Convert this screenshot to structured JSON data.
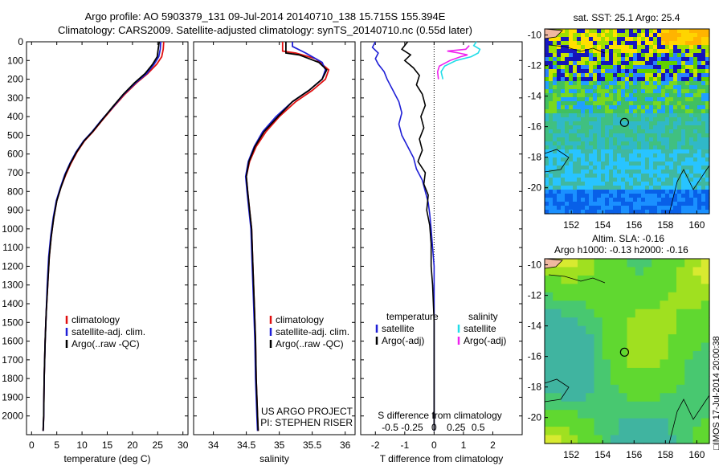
{
  "header": {
    "title_line1": "Argo profile: AO 5903379_131 09-Jul-2014 20140710_138 15.715S 155.394E",
    "title_line2": "Climatology: CARS2009. Satellite-adjusted climatology: synTS_20140710.nc (0.55d later)"
  },
  "sidebar": {
    "stamp": "IMOS 17-Jul-2014 20:00:38"
  },
  "colors": {
    "argo": "#000000",
    "satellite": "#1f1fd6",
    "climatology": "#e01010",
    "sal_satellite": "#22dde8",
    "sal_argo": "#ee22ee",
    "dotted": "#000000"
  },
  "chart_data": [
    {
      "type": "line",
      "id": "temperature",
      "xlabel": "temperature (deg C)",
      "ylabel": "",
      "xlim": [
        -1,
        31
      ],
      "ylim": [
        2100,
        0
      ],
      "xticks": [
        0,
        5,
        10,
        15,
        20,
        25,
        30
      ],
      "yticks": [
        0,
        100,
        200,
        300,
        400,
        500,
        600,
        700,
        800,
        900,
        1000,
        1100,
        1200,
        1300,
        1400,
        1500,
        1600,
        1700,
        1800,
        1900,
        2000
      ],
      "legend": [
        "climatology",
        "satellite-adj. clim.",
        "Argo(..raw -QC)"
      ],
      "legend_position": "lower-middle",
      "series": [
        {
          "name": "climatology",
          "color": "#e01010",
          "points": [
            [
              26.2,
              0
            ],
            [
              26.1,
              40
            ],
            [
              25.8,
              80
            ],
            [
              24.8,
              120
            ],
            [
              23.0,
              170
            ],
            [
              20.8,
              220
            ],
            [
              18.5,
              280
            ],
            [
              16.2,
              350
            ],
            [
              14.0,
              420
            ],
            [
              12.2,
              480
            ],
            [
              10.5,
              530
            ],
            [
              9.0,
              590
            ],
            [
              7.8,
              650
            ],
            [
              6.8,
              710
            ],
            [
              5.8,
              780
            ],
            [
              5.0,
              850
            ],
            [
              4.4,
              940
            ],
            [
              3.9,
              1040
            ],
            [
              3.5,
              1150
            ],
            [
              3.2,
              1300
            ],
            [
              2.9,
              1450
            ],
            [
              2.7,
              1600
            ],
            [
              2.5,
              1800
            ],
            [
              2.4,
              2000
            ],
            [
              2.3,
              2080
            ]
          ]
        },
        {
          "name": "satellite-adj. clim.",
          "color": "#1f1fd6",
          "points": [
            [
              25.6,
              0
            ],
            [
              25.5,
              40
            ],
            [
              25.2,
              80
            ],
            [
              24.3,
              120
            ],
            [
              22.8,
              170
            ],
            [
              20.6,
              220
            ],
            [
              18.3,
              280
            ],
            [
              16.1,
              350
            ],
            [
              13.8,
              420
            ],
            [
              12.0,
              480
            ],
            [
              10.3,
              530
            ],
            [
              8.8,
              590
            ],
            [
              7.6,
              650
            ],
            [
              6.6,
              710
            ],
            [
              5.7,
              780
            ],
            [
              4.9,
              850
            ],
            [
              4.3,
              940
            ],
            [
              3.8,
              1040
            ],
            [
              3.4,
              1150
            ],
            [
              3.1,
              1300
            ],
            [
              2.9,
              1450
            ],
            [
              2.7,
              1600
            ],
            [
              2.5,
              1800
            ],
            [
              2.4,
              2000
            ],
            [
              2.3,
              2080
            ]
          ]
        },
        {
          "name": "Argo(..raw -QC)",
          "color": "#000000",
          "points": [
            [
              25.3,
              0
            ],
            [
              25.1,
              40
            ],
            [
              24.9,
              80
            ],
            [
              24.0,
              120
            ],
            [
              22.5,
              170
            ],
            [
              20.4,
              220
            ],
            [
              18.2,
              280
            ],
            [
              16.0,
              350
            ],
            [
              13.9,
              420
            ],
            [
              12.1,
              480
            ],
            [
              10.4,
              530
            ],
            [
              8.9,
              590
            ],
            [
              7.7,
              650
            ],
            [
              6.7,
              710
            ],
            [
              5.8,
              780
            ],
            [
              5.0,
              850
            ],
            [
              4.4,
              940
            ],
            [
              3.9,
              1040
            ],
            [
              3.5,
              1150
            ],
            [
              3.2,
              1300
            ],
            [
              2.9,
              1450
            ],
            [
              2.7,
              1600
            ],
            [
              2.5,
              1800
            ],
            [
              2.4,
              2000
            ],
            [
              2.3,
              2080
            ]
          ]
        }
      ],
      "annotations": []
    },
    {
      "type": "line",
      "id": "salinity",
      "xlabel": "salinity",
      "ylabel": "",
      "xlim": [
        33.7,
        36.15
      ],
      "ylim": [
        2100,
        0
      ],
      "xticks": [
        34,
        34.5,
        35,
        35.5,
        36
      ],
      "legend": [
        "climatology",
        "satellite-adj. clim.",
        "Argo(..raw -QC)"
      ],
      "legend_position": "lower-right",
      "series": [
        {
          "name": "climatology",
          "color": "#e01010",
          "points": [
            [
              35.05,
              0
            ],
            [
              35.05,
              50
            ],
            [
              35.25,
              60
            ],
            [
              35.55,
              90
            ],
            [
              35.75,
              150
            ],
            [
              35.7,
              200
            ],
            [
              35.5,
              260
            ],
            [
              35.25,
              320
            ],
            [
              35.0,
              400
            ],
            [
              34.8,
              480
            ],
            [
              34.65,
              560
            ],
            [
              34.55,
              640
            ],
            [
              34.5,
              720
            ],
            [
              34.52,
              800
            ],
            [
              34.55,
              900
            ],
            [
              34.58,
              1000
            ],
            [
              34.6,
              1200
            ],
            [
              34.62,
              1400
            ],
            [
              34.64,
              1600
            ],
            [
              34.65,
              1800
            ],
            [
              34.67,
              2000
            ],
            [
              34.68,
              2080
            ]
          ]
        },
        {
          "name": "satellite-adj. clim.",
          "color": "#1f1fd6",
          "points": [
            [
              35.2,
              0
            ],
            [
              35.2,
              25
            ],
            [
              35.4,
              60
            ],
            [
              35.65,
              110
            ],
            [
              35.7,
              150
            ],
            [
              35.65,
              200
            ],
            [
              35.45,
              260
            ],
            [
              35.2,
              320
            ],
            [
              34.95,
              400
            ],
            [
              34.75,
              480
            ],
            [
              34.62,
              560
            ],
            [
              34.53,
              640
            ],
            [
              34.49,
              720
            ],
            [
              34.51,
              800
            ],
            [
              34.54,
              900
            ],
            [
              34.57,
              1000
            ],
            [
              34.59,
              1200
            ],
            [
              34.61,
              1400
            ],
            [
              34.63,
              1600
            ],
            [
              34.64,
              1800
            ],
            [
              34.66,
              2000
            ],
            [
              34.67,
              2080
            ]
          ]
        },
        {
          "name": "Argo(..raw -QC)",
          "color": "#000000",
          "points": [
            [
              35.1,
              0
            ],
            [
              35.1,
              60
            ],
            [
              35.3,
              70
            ],
            [
              35.6,
              110
            ],
            [
              35.72,
              150
            ],
            [
              35.65,
              200
            ],
            [
              35.45,
              260
            ],
            [
              35.2,
              320
            ],
            [
              34.98,
              400
            ],
            [
              34.77,
              480
            ],
            [
              34.63,
              560
            ],
            [
              34.54,
              640
            ],
            [
              34.5,
              720
            ],
            [
              34.52,
              800
            ],
            [
              34.55,
              900
            ],
            [
              34.58,
              1000
            ],
            [
              34.6,
              1200
            ],
            [
              34.62,
              1400
            ],
            [
              34.64,
              1600
            ],
            [
              34.65,
              1800
            ],
            [
              34.67,
              2000
            ],
            [
              34.68,
              2080
            ]
          ]
        }
      ],
      "annotations": [
        "US ARGO PROJECT",
        "PI: STEPHEN RISER"
      ]
    },
    {
      "type": "line",
      "id": "difference",
      "xlabel": "T difference from climatology",
      "xlabel2": "S difference from climatology",
      "xlim": [
        -2.5,
        3
      ],
      "ylim": [
        2100,
        0
      ],
      "xticks": [
        -2,
        -1,
        0,
        1,
        2
      ],
      "xticks2": [
        -0.5,
        -0.25,
        0,
        0.25,
        0.5
      ],
      "legend_headers": [
        "temperature",
        "salinity"
      ],
      "legend": [
        "satellite",
        "Argo(-adj)",
        "satellite",
        "Argo(-adj)"
      ],
      "legend_position": "lower-middle",
      "series": [
        {
          "name": "satellite",
          "color": "#1f1fd6",
          "points": [
            [
              -2.0,
              0
            ],
            [
              -2.1,
              30
            ],
            [
              -1.9,
              60
            ],
            [
              -2.0,
              90
            ],
            [
              -1.9,
              120
            ],
            [
              -1.7,
              160
            ],
            [
              -1.6,
              200
            ],
            [
              -1.4,
              260
            ],
            [
              -1.2,
              320
            ],
            [
              -1.1,
              380
            ],
            [
              -1.2,
              440
            ],
            [
              -1.1,
              500
            ],
            [
              -0.9,
              560
            ],
            [
              -0.7,
              620
            ],
            [
              -0.6,
              680
            ],
            [
              -0.4,
              740
            ],
            [
              -0.3,
              800
            ],
            [
              -0.2,
              860
            ],
            [
              -0.15,
              920
            ],
            [
              -0.1,
              1000
            ],
            [
              -0.05,
              1100
            ],
            [
              0.0,
              1200
            ],
            [
              0.0,
              1400
            ],
            [
              0.0,
              1700
            ],
            [
              0.0,
              2080
            ]
          ]
        },
        {
          "name": "Argo(-adj)",
          "color": "#000000",
          "points": [
            [
              -0.9,
              0
            ],
            [
              -1.1,
              40
            ],
            [
              -0.8,
              70
            ],
            [
              -1.0,
              100
            ],
            [
              -0.7,
              140
            ],
            [
              -0.5,
              180
            ],
            [
              -0.6,
              230
            ],
            [
              -0.4,
              280
            ],
            [
              -0.3,
              340
            ],
            [
              -0.45,
              400
            ],
            [
              -0.35,
              460
            ],
            [
              -0.5,
              520
            ],
            [
              -0.4,
              580
            ],
            [
              -0.55,
              640
            ],
            [
              -0.3,
              700
            ],
            [
              -0.35,
              760
            ],
            [
              -0.2,
              820
            ],
            [
              -0.25,
              900
            ],
            [
              -0.15,
              980
            ],
            [
              -0.1,
              1080
            ],
            [
              -0.1,
              1200
            ],
            [
              -0.05,
              1300
            ],
            [
              0.0,
              1500
            ],
            [
              0.0,
              2080
            ]
          ]
        },
        {
          "name": "satellite",
          "color": "#22dde8",
          "axis": "S",
          "points": [
            [
              0.1,
              200
            ],
            [
              0.08,
              160
            ],
            [
              0.12,
              130
            ],
            [
              0.25,
              100
            ],
            [
              0.42,
              80
            ],
            [
              0.5,
              60
            ],
            [
              0.52,
              40
            ],
            [
              0.45,
              20
            ],
            [
              0.48,
              0
            ]
          ]
        },
        {
          "name": "Argo(-adj)",
          "color": "#ee22ee",
          "axis": "S",
          "points": [
            [
              0.05,
              200
            ],
            [
              0.04,
              160
            ],
            [
              0.06,
              130
            ],
            [
              0.18,
              100
            ],
            [
              0.3,
              80
            ],
            [
              0.38,
              70
            ],
            [
              0.28,
              60
            ],
            [
              0.15,
              50
            ],
            [
              0.36,
              40
            ],
            [
              0.4,
              20
            ]
          ]
        }
      ],
      "annotations": []
    },
    {
      "type": "heatmap",
      "id": "sst-map",
      "title": "sat. SST: 25.1  Argo: 25.4",
      "xlim": [
        150.3,
        160.8
      ],
      "ylim": [
        -21.7,
        -9.6
      ],
      "xticks": [
        152,
        154,
        156,
        158,
        160
      ],
      "yticks": [
        -10,
        -12,
        -14,
        -16,
        -18,
        -20
      ],
      "marker": [
        155.39,
        -15.72
      ]
    },
    {
      "type": "heatmap",
      "id": "sla-map",
      "title": "Altim. SLA: -0.16",
      "subtitle": "Argo h1000: -0.13  h2000: -0.16",
      "xlim": [
        150.3,
        160.8
      ],
      "ylim": [
        -21.7,
        -9.6
      ],
      "xticks": [
        152,
        154,
        156,
        158,
        160
      ],
      "yticks": [
        -10,
        -12,
        -14,
        -16,
        -18,
        -20
      ],
      "marker": [
        155.39,
        -15.72
      ]
    }
  ]
}
